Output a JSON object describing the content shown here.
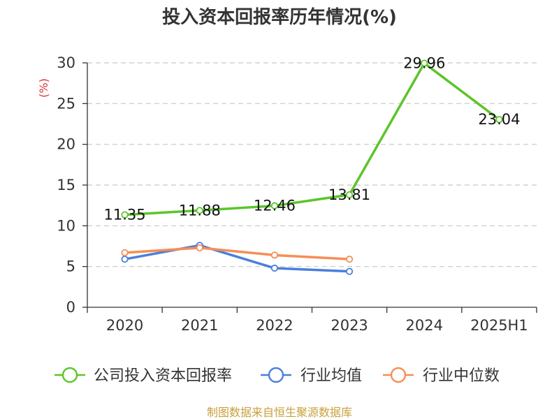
{
  "chart_data": {
    "type": "line",
    "title": "投入资本回报率历年情况(%)",
    "ylabel": "(%)",
    "ylabel_color": "#e03030",
    "xlabel": "",
    "categories": [
      "2020",
      "2021",
      "2022",
      "2023",
      "2024",
      "2025H1"
    ],
    "ylim": [
      0,
      30
    ],
    "yticks": [
      0,
      5,
      10,
      15,
      20,
      25,
      30
    ],
    "grid": true,
    "legend_position": "bottom",
    "series": [
      {
        "name": "公司投入资本回报率",
        "color": "#5cc52a",
        "values": [
          11.35,
          11.88,
          12.46,
          13.81,
          29.96,
          23.04
        ],
        "labels": [
          "11.35",
          "11.88",
          "12.46",
          "13.81",
          "29.96",
          "23.04"
        ],
        "show_labels": true
      },
      {
        "name": "行业均值",
        "color": "#4a7fdc",
        "values": [
          5.9,
          7.6,
          4.8,
          4.4,
          null,
          null
        ],
        "show_labels": false
      },
      {
        "name": "行业中位数",
        "color": "#f68e55",
        "values": [
          6.7,
          7.3,
          6.4,
          5.9,
          null,
          null
        ],
        "show_labels": false
      }
    ]
  },
  "source": {
    "text": "制图数据来自恒生聚源数据库",
    "color": "#c8a03c"
  }
}
